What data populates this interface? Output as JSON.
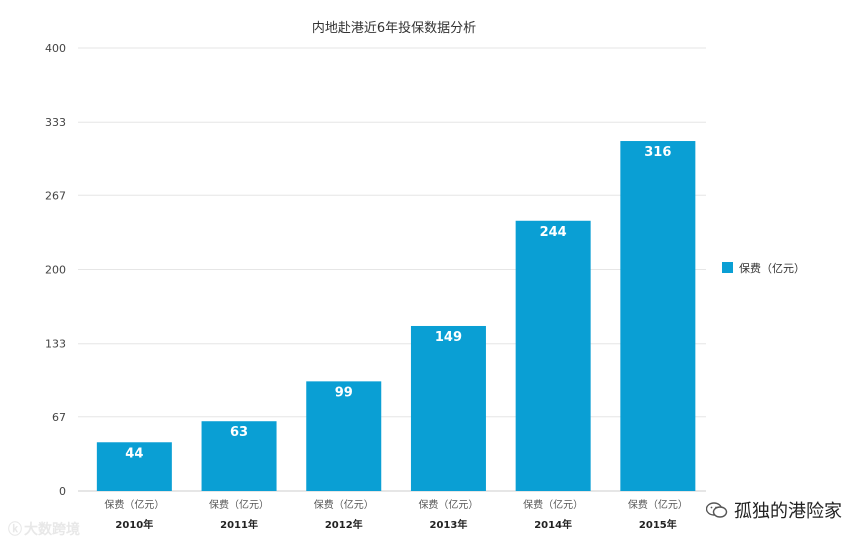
{
  "chart_data": {
    "type": "bar",
    "title": "内地赴港近6年投保数据分析",
    "categories": [
      "2010年",
      "2011年",
      "2012年",
      "2013年",
      "2014年",
      "2015年"
    ],
    "category_series_label": "保费（亿元）",
    "series": [
      {
        "name": "保费（亿元）",
        "values": [
          44,
          63,
          99,
          149,
          244,
          316
        ],
        "color": "#0a9fd4"
      }
    ],
    "yticks": [
      "0",
      "67",
      "133",
      "200",
      "267",
      "333",
      "400"
    ],
    "ylim": [
      0,
      400
    ],
    "grid": true,
    "legend": "right"
  },
  "watermarks": {
    "right_text": "孤独的港险家",
    "left_text": "大数跨境"
  }
}
